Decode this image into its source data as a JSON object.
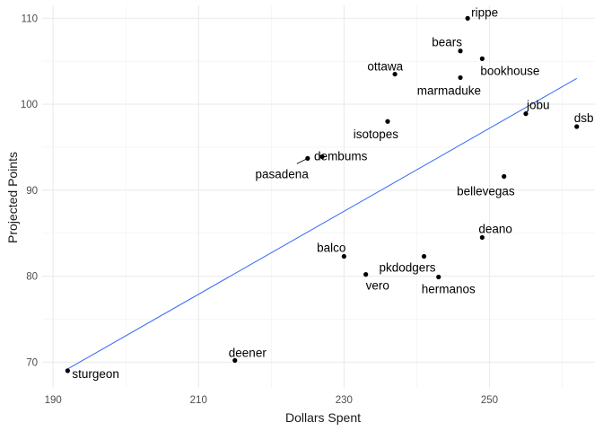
{
  "chart_data": {
    "type": "scatter",
    "title": "",
    "xlabel": "Dollars Spent",
    "ylabel": "Projected Points",
    "xlim": [
      188.5,
      264.5
    ],
    "ylim": [
      67,
      111.5
    ],
    "x_ticks": [
      190,
      210,
      230,
      250
    ],
    "y_ticks": [
      70,
      80,
      90,
      100,
      110
    ],
    "grid": true,
    "points": [
      {
        "label": "rippe",
        "x": 247,
        "y": 110
      },
      {
        "label": "bears",
        "x": 246,
        "y": 106.2
      },
      {
        "label": "bookhouse",
        "x": 249,
        "y": 105.3
      },
      {
        "label": "ottawa",
        "x": 237,
        "y": 103.5
      },
      {
        "label": "marmaduke",
        "x": 246,
        "y": 103.1
      },
      {
        "label": "jobu",
        "x": 255,
        "y": 98.9
      },
      {
        "label": "dsb",
        "x": 262,
        "y": 97.4
      },
      {
        "label": "isotopes",
        "x": 236,
        "y": 98
      },
      {
        "label": "dembums",
        "x": 227,
        "y": 93.9
      },
      {
        "label": "pasadena",
        "x": 225,
        "y": 93.7
      },
      {
        "label": "bellevegas",
        "x": 252,
        "y": 91.6
      },
      {
        "label": "deano",
        "x": 249,
        "y": 84.5
      },
      {
        "label": "balco",
        "x": 230,
        "y": 82.3
      },
      {
        "label": "pkdodgers",
        "x": 241,
        "y": 82.3
      },
      {
        "label": "vero",
        "x": 233,
        "y": 80.2
      },
      {
        "label": "hermanos",
        "x": 243,
        "y": 79.9
      },
      {
        "label": "deener",
        "x": 215,
        "y": 70.2
      },
      {
        "label": "sturgeon",
        "x": 192,
        "y": 69
      }
    ],
    "trend_line": {
      "color": "#3366ff",
      "x": [
        192,
        262
      ],
      "y": [
        69.2,
        103
      ]
    },
    "point_color": "#000000"
  }
}
